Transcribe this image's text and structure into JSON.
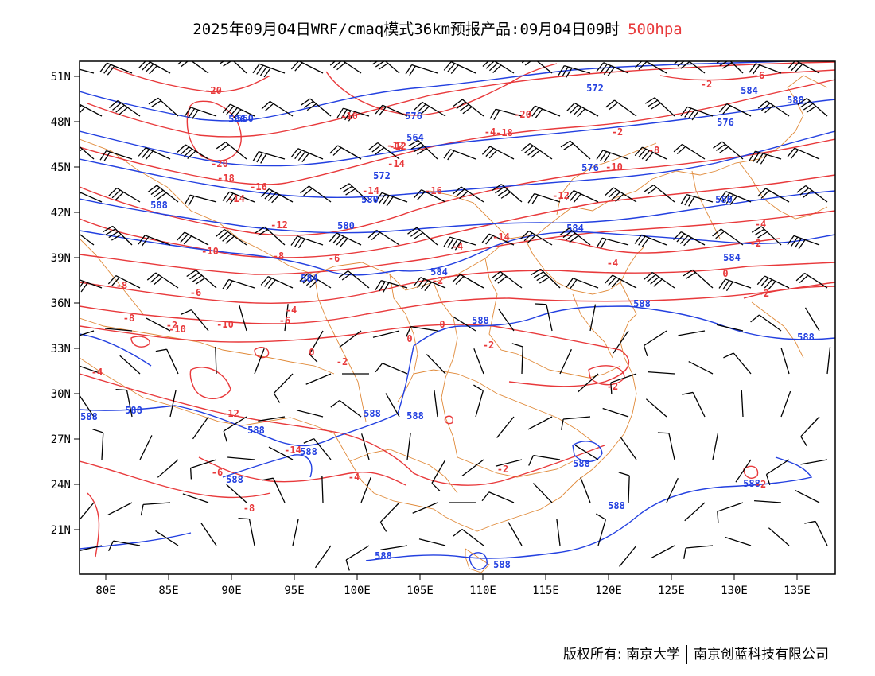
{
  "title": {
    "main": "2025年09月04日WRF/cmaq模式36km预报产品:09月04日09时",
    "level": "500hpa"
  },
  "colors": {
    "height_contour": "#2340e0",
    "temperature_contour": "#e8393b",
    "boundary": "#e08a3a",
    "wind_barb": "#000000"
  },
  "map": {
    "lon_ticks": [
      "80E",
      "85E",
      "90E",
      "95E",
      "100E",
      "105E",
      "110E",
      "115E",
      "120E",
      "125E",
      "130E",
      "135E"
    ],
    "lat_ticks": [
      "21N",
      "24N",
      "27N",
      "30N",
      "33N",
      "36N",
      "39N",
      "42N",
      "45N",
      "48N",
      "51N"
    ],
    "height_labels": [
      "560",
      "568",
      "564",
      "572",
      "580",
      "584",
      "584",
      "588",
      "576",
      "580",
      "584",
      "584",
      "572",
      "580",
      "576",
      "584",
      "588",
      "588",
      "588",
      "588",
      "588",
      "588",
      "588",
      "588",
      "588",
      "588",
      "588",
      "588",
      "588",
      "588",
      "588",
      "576",
      "588"
    ],
    "temperature_labels": [
      "-20",
      "-20",
      "-18",
      "-16",
      "-14",
      "-12",
      "-10",
      "-8",
      "-6",
      "-4",
      "-2",
      "0",
      "-2",
      "0",
      "-4",
      "-6",
      "-8",
      "-10",
      "-12",
      "-14",
      "-16",
      "-18",
      "-20",
      "-14",
      "-12",
      "-10",
      "-8",
      "-6",
      "-4",
      "-2",
      "0",
      "-2",
      "-4",
      "-6",
      "-8",
      "-10",
      "-12",
      "-14",
      "-4",
      "-2",
      "-2",
      "-4",
      "-2",
      "0",
      "-2",
      "-2",
      "-6",
      "-8",
      "-10",
      "-12",
      "-14",
      "-4",
      "-2",
      "-2"
    ]
  },
  "footer": {
    "owner": "版权所有: 南京大学",
    "company": "南京创蓝科技有限公司"
  }
}
